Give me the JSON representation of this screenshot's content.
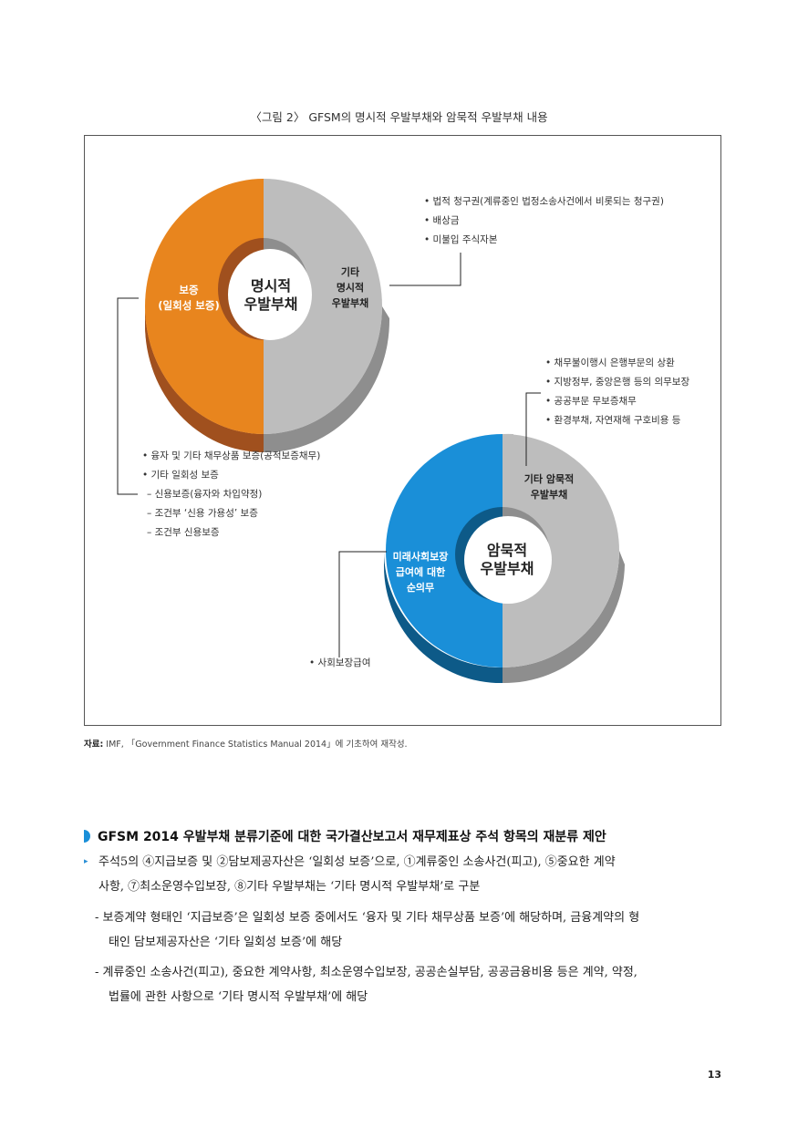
{
  "figure": {
    "title": "〈그림 2〉 GFSM의 명시적 우발부채와 암묵적 우발부채 내용",
    "explicit_donut": {
      "center_l1": "명시적",
      "center_l2": "우발부채",
      "left_l1": "보증",
      "left_l2": "(일회성 보증)",
      "right_l1": "기타",
      "right_l2": "명시적",
      "right_l3": "우발부채",
      "colors": {
        "left": "#e8851e",
        "left_dark": "#a0501e",
        "right": "#bdbdbd",
        "right_dark": "#8e8e8e",
        "inner_left": "#a0501e",
        "inner_right": "#8e8e8e"
      }
    },
    "implicit_donut": {
      "center_l1": "암묵적",
      "center_l2": "우발부채",
      "left_l1": "미래사회보장",
      "left_l2": "급여에 대한",
      "left_l3": "순의무",
      "right_l1": "기타 암묵적",
      "right_l2": "우발부채",
      "colors": {
        "left": "#1a8fd8",
        "left_dark": "#0d5a88",
        "right": "#bdbdbd",
        "right_dark": "#8e8e8e"
      }
    },
    "explicit_other_list": [
      "• 법적 청구권(계류중인 법정소송사건에서 비롯되는 청구권)",
      "• 배상금",
      "• 미불입 주식자본"
    ],
    "guarantee_list": [
      "• 융자 및 기타 채무상품 보증(공적보증채무)",
      "• 기타 일회성 보증",
      "– 신용보증(융자와 차입약정)",
      "– 조건부 ‘신용 가용성’ 보증",
      "– 조건부 신용보증"
    ],
    "implicit_other_list": [
      "• 채무불이행시 은행부문의 상환",
      "• 지방정부, 중앙은행 등의 의무보장",
      "• 공공부문 무보증채무",
      "• 환경부채, 자연재해 구호비용 등"
    ],
    "social_list": [
      "• 사회보장급여"
    ]
  },
  "source": {
    "label": "자료:",
    "text": " IMF, 「Government Finance Statistics Manual 2014」에 기초하여 재작성."
  },
  "section": {
    "heading": "GFSM 2014 우발부채 분류기준에 대한 국가결산보고서 재무제표상 주석 항목의 재분류 제안",
    "bullet_marker": "▸",
    "bullet_l1": "주석5의 ④지급보증 및 ②담보제공자산은 ‘일회성 보증’으로, ①계류중인 소송사건(피고), ⑤중요한 계약",
    "bullet_l2": "사항, ⑦최소운영수입보장, ⑧기타 우발부채는 ‘기타 명시적 우발부채’로 구분",
    "dash1_l1": "- 보증계약 형태인 ‘지급보증’은 일회성 보증 중에서도 ‘융자 및 기타 채무상품 보증’에 해당하며, 금융계약의 형",
    "dash1_l2": "태인 담보제공자산은 ‘기타 일회성 보증’에 해당",
    "dash2_l1": "- 계류중인 소송사건(피고), 중요한 계약사항, 최소운영수입보장, 공공손실부담, 공공금융비용 등은 계약, 약정,",
    "dash2_l2": "법률에 관한 사항으로 ‘기타 명시적 우발부채’에 해당"
  },
  "page_number": "13"
}
